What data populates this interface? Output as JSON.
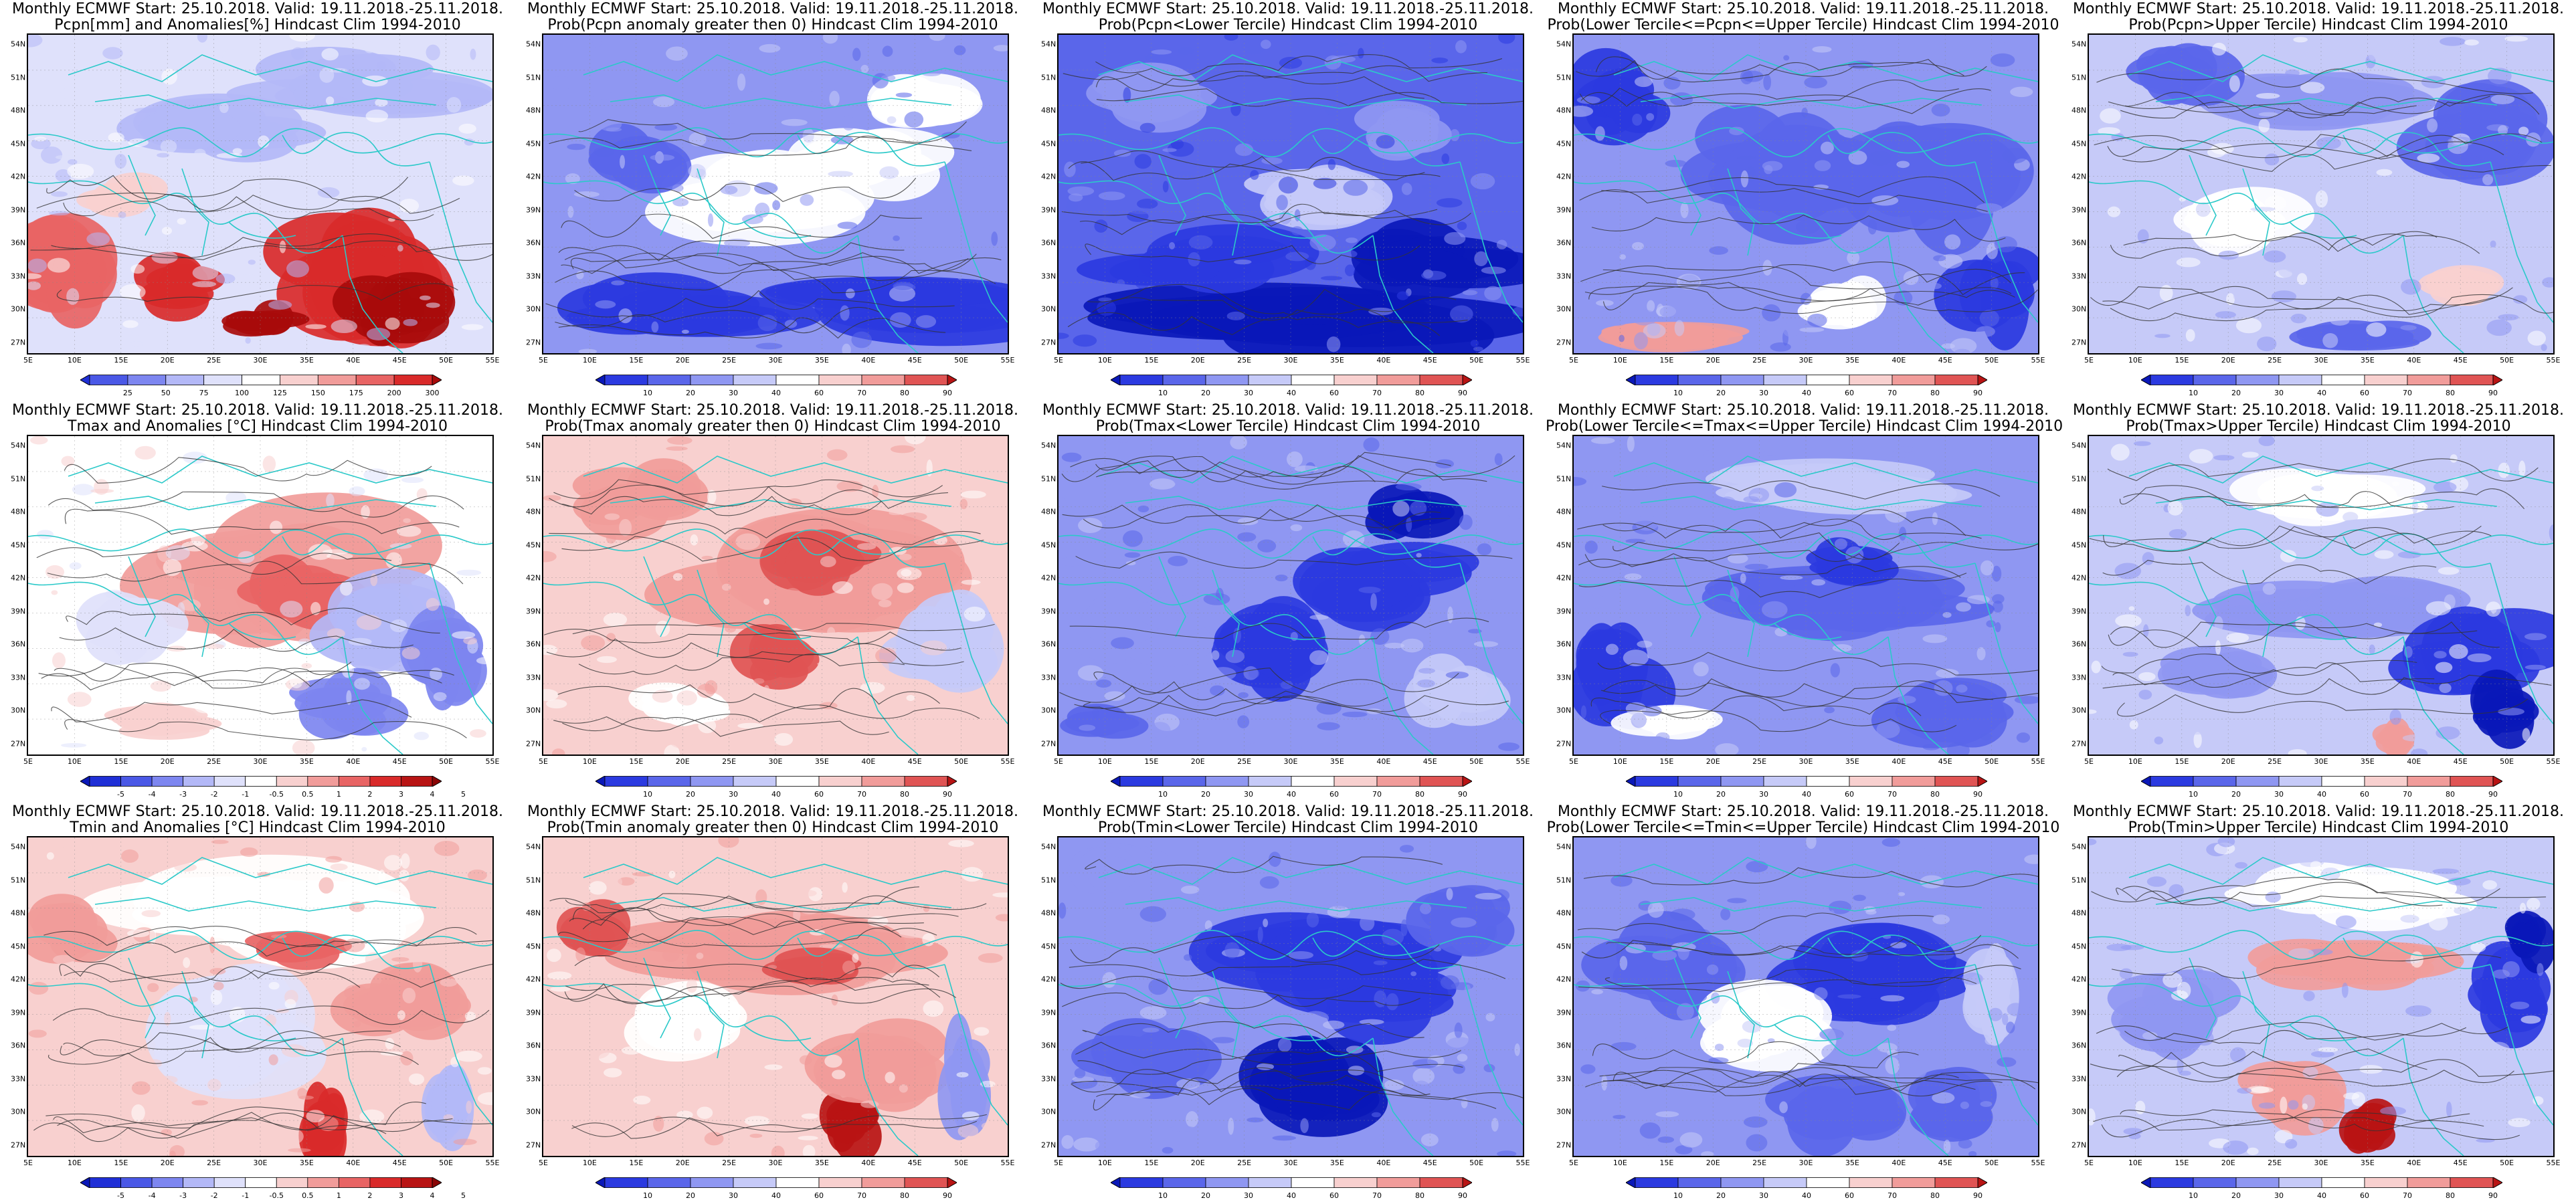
{
  "figure": {
    "rows": [
      {
        "variable": "Pcpn",
        "panels": [
          {
            "line1": "Monthly ECMWF Start: 25.10.2018. Valid: 19.11.2018.-25.11.2018.",
            "line2": "Pcpn[mm] and Anomalies[%] Hindcast Clim 1994-2010",
            "type": "anomaly",
            "scale": "pcpn_anom",
            "pattern": "pcpn_anom"
          },
          {
            "line1": "Monthly ECMWF Start: 25.10.2018. Valid: 19.11.2018.-25.11.2018.",
            "line2": "Prob(Pcpn anomaly greater then 0) Hindcast Clim 1994-2010",
            "type": "probability",
            "scale": "prob",
            "pattern": "pcpn_pos"
          },
          {
            "line1": "Monthly ECMWF Start: 25.10.2018. Valid: 19.11.2018.-25.11.2018.",
            "line2": "Prob(Pcpn<Lower Tercile) Hindcast Clim 1994-2010",
            "type": "probability",
            "scale": "prob",
            "pattern": "pcpn_lower"
          },
          {
            "line1": "Monthly ECMWF Start: 25.10.2018. Valid: 19.11.2018.-25.11.2018.",
            "line2": "Prob(Lower Tercile<=Pcpn<=Upper Tercile) Hindcast Clim 1994-2010",
            "type": "probability",
            "scale": "prob",
            "pattern": "pcpn_mid"
          },
          {
            "line1": "Monthly ECMWF Start: 25.10.2018. Valid: 19.11.2018.-25.11.2018.",
            "line2": "Prob(Pcpn>Upper Tercile) Hindcast Clim 1994-2010",
            "type": "probability",
            "scale": "prob",
            "pattern": "pcpn_upper"
          }
        ]
      },
      {
        "variable": "Tmax",
        "panels": [
          {
            "line1": "Monthly ECMWF Start: 25.10.2018. Valid: 19.11.2018.-25.11.2018.",
            "line2": "Tmax and Anomalies [°C] Hindcast Clim 1994-2010",
            "type": "anomaly",
            "scale": "temp_anom",
            "pattern": "tmax_anom"
          },
          {
            "line1": "Monthly ECMWF Start: 25.10.2018. Valid: 19.11.2018.-25.11.2018.",
            "line2": "Prob(Tmax anomaly greater then 0) Hindcast Clim 1994-2010",
            "type": "probability",
            "scale": "prob",
            "pattern": "tmax_pos"
          },
          {
            "line1": "Monthly ECMWF Start: 25.10.2018. Valid: 19.11.2018.-25.11.2018.",
            "line2": "Prob(Tmax<Lower Tercile) Hindcast Clim 1994-2010",
            "type": "probability",
            "scale": "prob",
            "pattern": "tmax_lower"
          },
          {
            "line1": "Monthly ECMWF Start: 25.10.2018. Valid: 19.11.2018.-25.11.2018.",
            "line2": "Prob(Lower Tercile<=Tmax<=Upper Tercile) Hindcast Clim 1994-2010",
            "type": "probability",
            "scale": "prob",
            "pattern": "tmax_mid"
          },
          {
            "line1": "Monthly ECMWF Start: 25.10.2018. Valid: 19.11.2018.-25.11.2018.",
            "line2": "Prob(Tmax>Upper Tercile) Hindcast Clim 1994-2010",
            "type": "probability",
            "scale": "prob",
            "pattern": "tmax_upper"
          }
        ]
      },
      {
        "variable": "Tmin",
        "panels": [
          {
            "line1": "Monthly ECMWF Start: 25.10.2018. Valid: 19.11.2018.-25.11.2018.",
            "line2": "Tmin and Anomalies [°C] Hindcast Clim 1994-2010",
            "type": "anomaly",
            "scale": "temp_anom",
            "pattern": "tmin_anom"
          },
          {
            "line1": "Monthly ECMWF Start: 25.10.2018. Valid: 19.11.2018.-25.11.2018.",
            "line2": "Prob(Tmin anomaly greater then 0) Hindcast Clim 1994-2010",
            "type": "probability",
            "scale": "prob",
            "pattern": "tmin_pos"
          },
          {
            "line1": "Monthly ECMWF Start: 25.10.2018. Valid: 19.11.2018.-25.11.2018.",
            "line2": "Prob(Tmin<Lower Tercile) Hindcast Clim 1994-2010",
            "type": "probability",
            "scale": "prob",
            "pattern": "tmin_lower"
          },
          {
            "line1": "Monthly ECMWF Start: 25.10.2018. Valid: 19.11.2018.-25.11.2018.",
            "line2": "Prob(Lower Tercile<=Tmin<=Upper Tercile) Hindcast Clim 1994-2010",
            "type": "probability",
            "scale": "prob",
            "pattern": "tmin_mid"
          },
          {
            "line1": "Monthly ECMWF Start: 25.10.2018. Valid: 19.11.2018.-25.11.2018.",
            "line2": "Prob(Tmin>Upper Tercile) Hindcast Clim 1994-2010",
            "type": "probability",
            "scale": "prob",
            "pattern": "tmin_upper"
          }
        ]
      }
    ],
    "axes": {
      "lon_labels": [
        "5E",
        "10E",
        "15E",
        "20E",
        "25E",
        "30E",
        "35E",
        "40E",
        "45E",
        "50E",
        "55E"
      ],
      "lat_labels": [
        "54N",
        "51N",
        "48N",
        "45N",
        "42N",
        "39N",
        "36N",
        "33N",
        "30N",
        "27N"
      ]
    },
    "scales": {
      "pcpn_anom": {
        "labels": [
          "25",
          "50",
          "75",
          "100",
          "125",
          "150",
          "175",
          "200",
          "300"
        ],
        "colors": [
          "#1f2fd6",
          "#4a58e6",
          "#7d86f0",
          "#b3b8f7",
          "#dfe1fb",
          "#ffffff",
          "#f8d0cf",
          "#f19c9a",
          "#e86464",
          "#d92a2a",
          "#a80b0b"
        ]
      },
      "temp_anom": {
        "labels": [
          "-5",
          "-4",
          "-3",
          "-2",
          "-1",
          "-0.5",
          "0.5",
          "1",
          "2",
          "3",
          "4",
          "5"
        ],
        "colors": [
          "#0a18b8",
          "#1f2fd6",
          "#4a58e6",
          "#7d86f0",
          "#b3b8f7",
          "#dfe1fb",
          "#ffffff",
          "#f8d0cf",
          "#f19c9a",
          "#e86464",
          "#d92a2a",
          "#b81414",
          "#8a0606"
        ]
      },
      "prob": {
        "labels": [
          "10",
          "20",
          "30",
          "40",
          "60",
          "70",
          "80",
          "90"
        ],
        "colors": [
          "#0a18b8",
          "#2b3ae0",
          "#5a66ea",
          "#8f97f2",
          "#c6caf8",
          "#ffffff",
          "#f8d0cf",
          "#f19c9a",
          "#e05454",
          "#b81414"
        ]
      }
    },
    "field_colors": {
      "ocean_contour": "#2bc9c9",
      "isoline": "#333333",
      "frame": "#000000"
    }
  }
}
